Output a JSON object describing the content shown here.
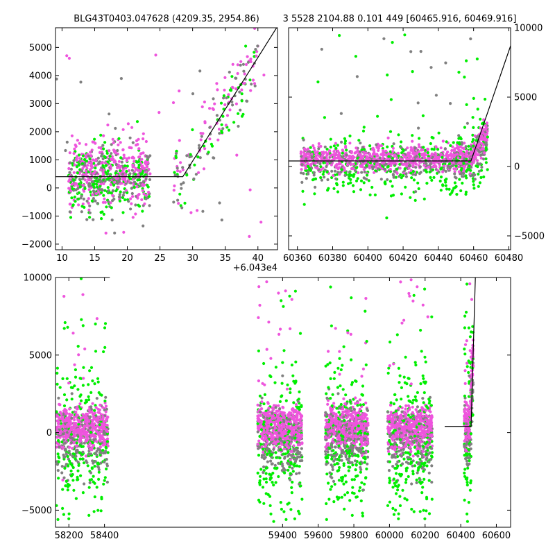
{
  "title_left": "BLG43T0403.047628 (4209.35, 2954.86)",
  "title_right": "3 5528 2104.88 0.101 449 [60465.916, 60469.916]",
  "colors": {
    "gray": "#808080",
    "green": "#00ee00",
    "magenta": "#ee55dd",
    "model": "#000000"
  },
  "chart_data": [
    {
      "type": "scatter",
      "panel": "top-left",
      "xlim": [
        9,
        43
      ],
      "ylim": [
        -2200,
        5700
      ],
      "xticks": [
        10,
        15,
        20,
        25,
        30,
        35,
        40
      ],
      "yticks": [
        -2000,
        -1000,
        0,
        1000,
        2000,
        3000,
        4000,
        5000
      ],
      "tick_side": "left",
      "offset_label": "+6.043e4",
      "model_line": [
        [
          9,
          400
        ],
        [
          28.5,
          400
        ],
        [
          43,
          5750
        ]
      ]
    },
    {
      "type": "scatter",
      "panel": "top-right",
      "xlim": [
        60355,
        60481
      ],
      "ylim": [
        -6000,
        10000
      ],
      "xticks": [
        60360,
        60380,
        60400,
        60420,
        60440,
        60460,
        60480
      ],
      "yticks": [
        -5000,
        0,
        5000,
        10000
      ],
      "tick_side": "right",
      "model_line": [
        [
          60355,
          400
        ],
        [
          60458.5,
          400
        ],
        [
          60481,
          8700
        ]
      ]
    },
    {
      "type": "scatter",
      "panel": "bottom",
      "xlim": [
        58125,
        60680
      ],
      "ylim": [
        -6100,
        10000
      ],
      "xticks": [
        58200,
        58400,
        59400,
        59600,
        59800,
        60000,
        60200,
        60400,
        60600
      ],
      "yticks": [
        -5000,
        0,
        5000,
        10000
      ],
      "tick_side": "left",
      "axis_break": [
        58430,
        59260
      ],
      "model_line": [
        [
          60310,
          400
        ],
        [
          60458,
          400
        ],
        [
          60482,
          10000
        ]
      ],
      "seasons": [
        [
          58130,
          58420
        ],
        [
          59260,
          59510
        ],
        [
          59640,
          59880
        ],
        [
          59990,
          60240
        ],
        [
          60420,
          60470
        ]
      ]
    }
  ]
}
